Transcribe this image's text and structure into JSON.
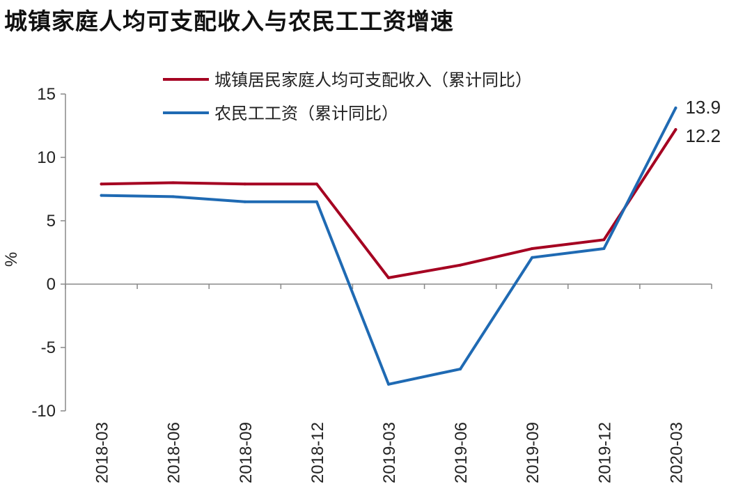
{
  "title": "城镇家庭人均可支配收入与农民工工资增速",
  "chart_data": {
    "type": "line",
    "title": "城镇家庭人均可支配收入与农民工工资增速",
    "ylabel": "%",
    "xlabel": "",
    "ylim": [
      -10,
      15
    ],
    "yticks": [
      "15",
      "10",
      "5",
      "0",
      "-5",
      "-10"
    ],
    "categories": [
      "2018-03",
      "2018-06",
      "2018-09",
      "2018-12",
      "2019-03",
      "2019-06",
      "2019-09",
      "2019-12",
      "2020-03"
    ],
    "series": [
      {
        "name": "城镇居民家庭人均可支配收入（累计同比）",
        "color": "#A50021",
        "values": [
          7.9,
          8.0,
          7.9,
          7.9,
          0.5,
          1.5,
          2.8,
          3.5,
          12.2
        ],
        "end_label": "12.2"
      },
      {
        "name": "农民工工资（累计同比）",
        "color": "#1F6AB3",
        "values": [
          7.0,
          6.9,
          6.5,
          6.5,
          -7.9,
          -6.7,
          2.1,
          2.8,
          13.9
        ],
        "end_label": "13.9"
      }
    ],
    "legend_position": "top",
    "grid": false
  }
}
